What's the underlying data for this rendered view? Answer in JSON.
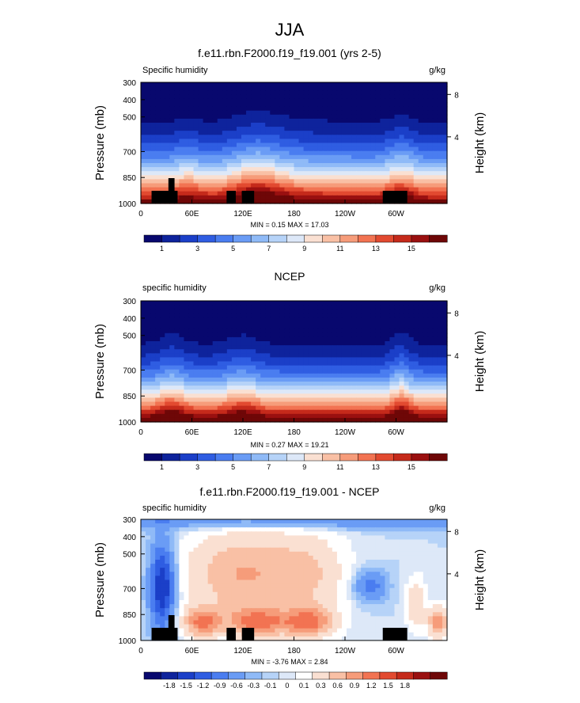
{
  "page_title": "JJA",
  "colorbar_palette": [
    "#08086e",
    "#0e239c",
    "#1b3fc8",
    "#2f5de2",
    "#4a7df0",
    "#6a9cf5",
    "#8fbaf7",
    "#b6d3f8",
    "#dde8f8",
    "#fae0d2",
    "#f9c0a5",
    "#f69c7a",
    "#f27352",
    "#e24a30",
    "#c52a1b",
    "#9a1010",
    "#6e0707"
  ],
  "diff_palette": [
    "#08086e",
    "#0e239c",
    "#1b3fc8",
    "#2f5de2",
    "#4a7df0",
    "#6a9cf5",
    "#8fbaf7",
    "#b6d3f8",
    "#dde8f8",
    "#ffffff",
    "#fae0d2",
    "#f9c0a5",
    "#f69c7a",
    "#f27352",
    "#e24a30",
    "#c52a1b",
    "#9a1010",
    "#6e0707"
  ],
  "chart_data": [
    {
      "type": "heatmap",
      "panel": "model",
      "title": "f.e11.rbn.F2000.f19_f19.001 (yrs 2-5)",
      "left_label": "Specific humidity",
      "right_label": "g/kg",
      "ylabel": "Pressure (mb)",
      "y2label": "Height (km)",
      "xticks": [
        "0",
        "60E",
        "120E",
        "180",
        "120W",
        "60W"
      ],
      "yticks": [
        "300",
        "400",
        "500",
        "700",
        "850",
        "1000"
      ],
      "y2ticks": [
        "8",
        "4"
      ],
      "stats": "MIN =   0.15  MAX =  17.03",
      "min": 0.15,
      "max": 17.03,
      "colorbar_labels": [
        "1",
        "3",
        "5",
        "7",
        "9",
        "11",
        "13",
        "15"
      ],
      "terrain": true
    },
    {
      "type": "heatmap",
      "panel": "obs",
      "title": "NCEP",
      "left_label": "specific humidity",
      "right_label": "g/kg",
      "ylabel": "Pressure (mb)",
      "y2label": "Height (km)",
      "xticks": [
        "0",
        "60E",
        "120E",
        "180",
        "120W",
        "60W"
      ],
      "yticks": [
        "300",
        "400",
        "500",
        "700",
        "850",
        "1000"
      ],
      "y2ticks": [
        "8",
        "4"
      ],
      "stats": "MIN =   0.27  MAX =  19.21",
      "min": 0.27,
      "max": 19.21,
      "colorbar_labels": [
        "1",
        "3",
        "5",
        "7",
        "9",
        "11",
        "13",
        "15"
      ],
      "terrain": false
    },
    {
      "type": "heatmap",
      "panel": "diff",
      "title": "f.e11.rbn.F2000.f19_f19.001 - NCEP",
      "left_label": "specific humidity",
      "right_label": "g/kg",
      "ylabel": "Pressure (mb)",
      "y2label": "Height (km)",
      "xticks": [
        "0",
        "60E",
        "120E",
        "180",
        "120W",
        "60W"
      ],
      "yticks": [
        "300",
        "400",
        "500",
        "700",
        "850",
        "1000"
      ],
      "y2ticks": [
        "8",
        "4"
      ],
      "stats": "MIN =  -3.76  MAX =   2.84",
      "min": -3.76,
      "max": 2.84,
      "colorbar_labels": [
        "-1.8",
        "-1.5",
        "-1.2",
        "-0.9",
        "-0.6",
        "-0.3",
        "-0.1",
        "0",
        "0.1",
        "0.3",
        "0.6",
        "0.9",
        "1.2",
        "1.5",
        "1.8"
      ],
      "terrain": true
    }
  ]
}
